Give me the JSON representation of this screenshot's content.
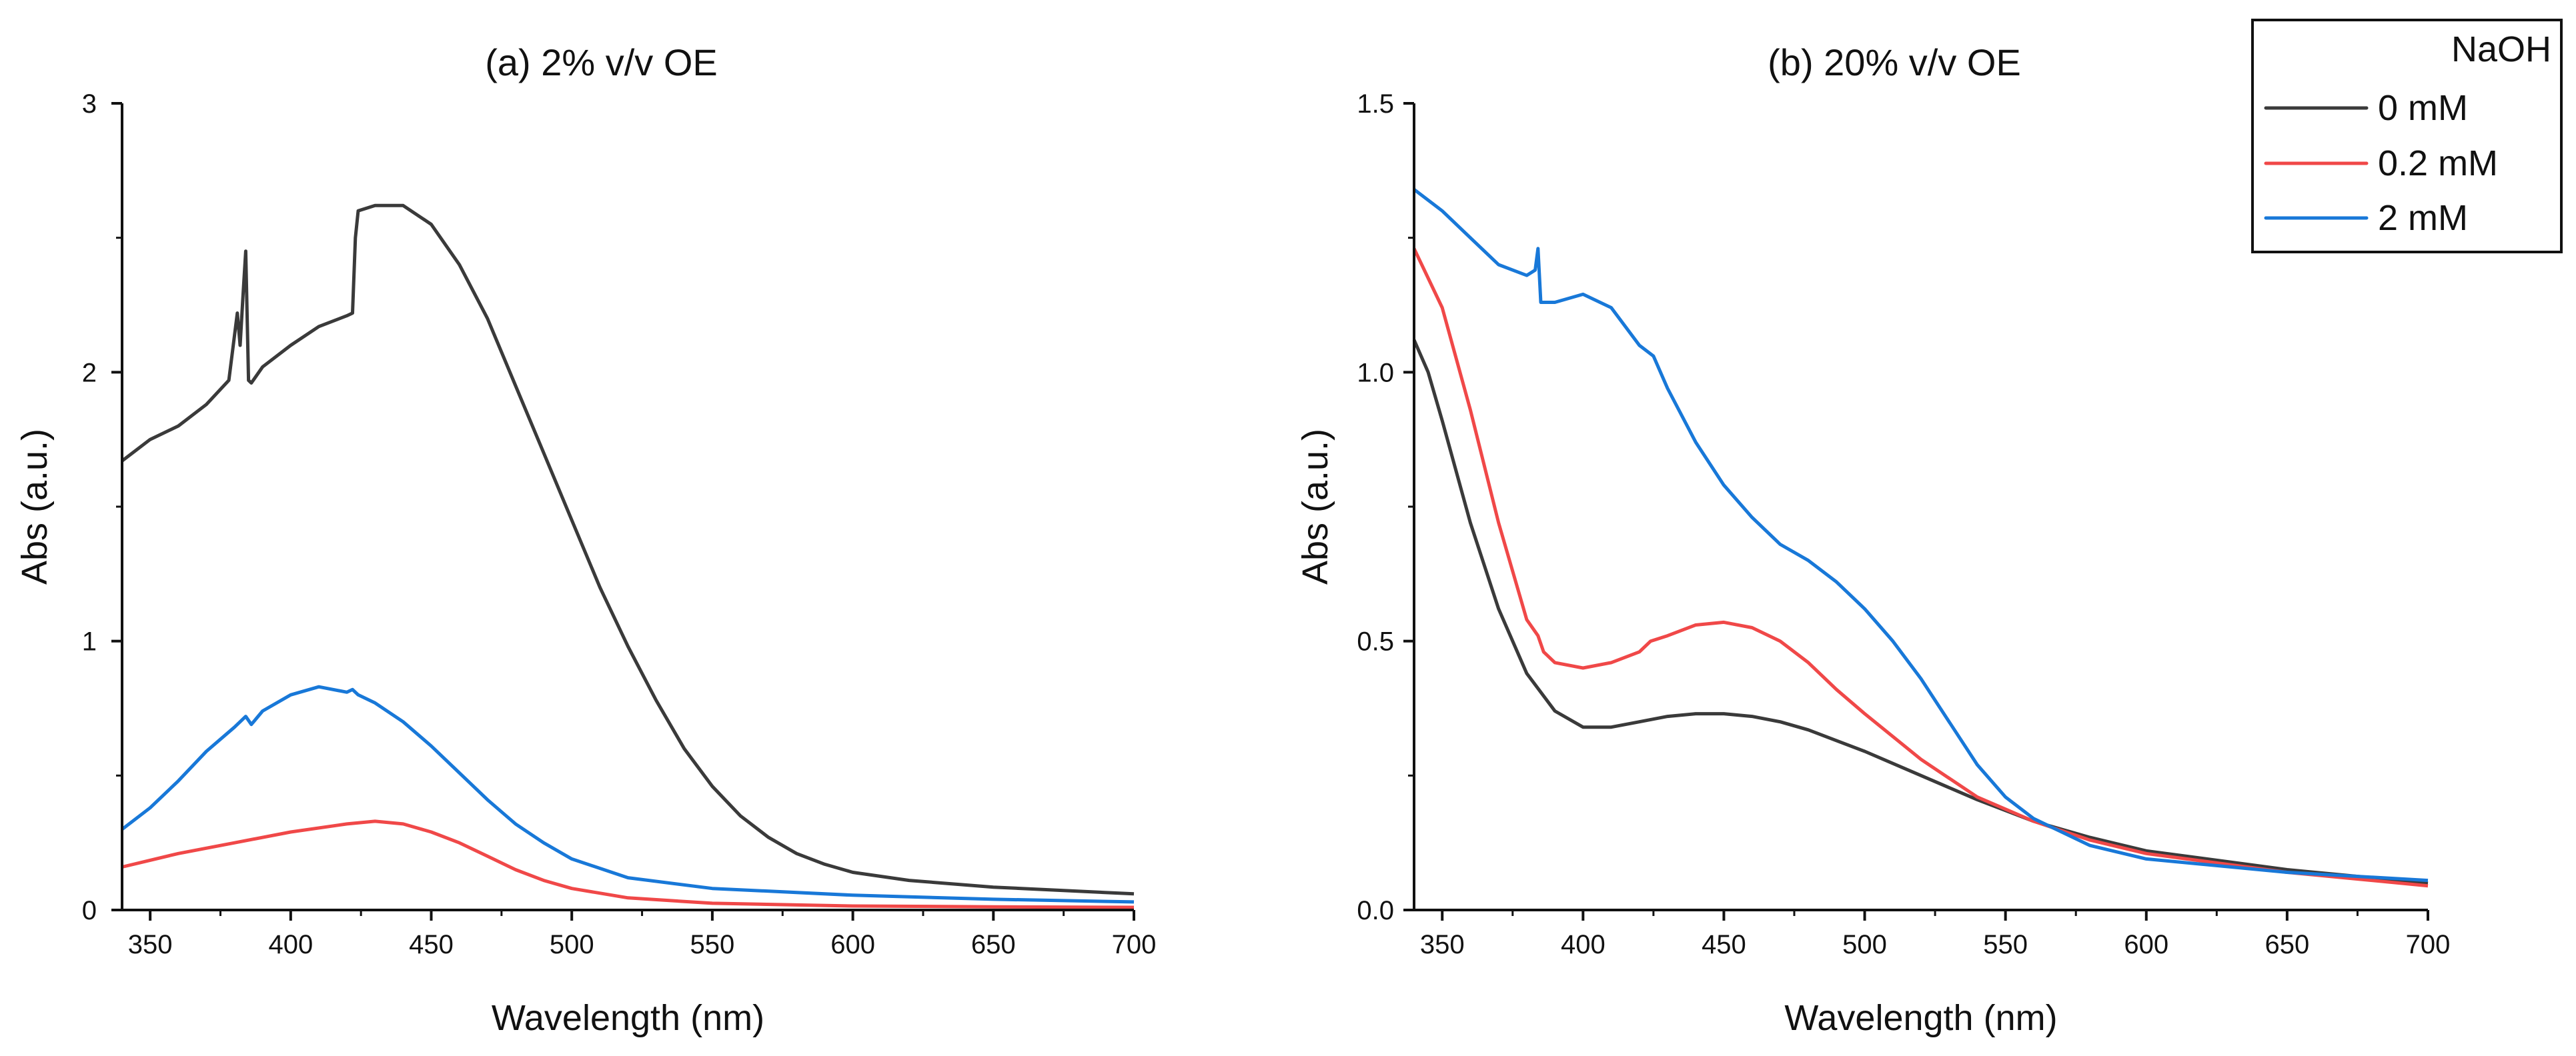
{
  "chart_data": [
    {
      "type": "line",
      "title": "(a) 2% v/v OE",
      "xlabel": "Wavelength (nm)",
      "ylabel": "Abs (a.u.)",
      "xlim": [
        340,
        700
      ],
      "ylim": [
        0,
        3
      ],
      "xticks": [
        350,
        400,
        450,
        500,
        550,
        600,
        650,
        700
      ],
      "xtick_labels": [
        "350",
        "400",
        "450",
        "500",
        "550",
        "600",
        "650",
        "700"
      ],
      "yticks": [
        0,
        1,
        2,
        3
      ],
      "ytick_labels": [
        "0",
        "1",
        "2",
        "3"
      ],
      "series": [
        {
          "name": "0 mM",
          "color": "#3a3a3a",
          "x": [
            340,
            350,
            360,
            370,
            378,
            381,
            382,
            383,
            384,
            385,
            386,
            390,
            400,
            410,
            420,
            422,
            423,
            424,
            430,
            440,
            450,
            460,
            470,
            480,
            490,
            500,
            510,
            520,
            530,
            540,
            550,
            560,
            570,
            580,
            590,
            600,
            620,
            650,
            700
          ],
          "y": [
            1.67,
            1.75,
            1.8,
            1.88,
            1.97,
            2.22,
            2.1,
            2.28,
            2.45,
            1.97,
            1.96,
            2.02,
            2.1,
            2.17,
            2.21,
            2.22,
            2.5,
            2.6,
            2.62,
            2.62,
            2.55,
            2.4,
            2.2,
            1.95,
            1.7,
            1.45,
            1.2,
            0.98,
            0.78,
            0.6,
            0.46,
            0.35,
            0.27,
            0.21,
            0.17,
            0.14,
            0.11,
            0.085,
            0.06
          ]
        },
        {
          "name": "0.2 mM",
          "color": "#f04848",
          "x": [
            340,
            360,
            380,
            400,
            420,
            430,
            440,
            450,
            460,
            470,
            480,
            490,
            500,
            520,
            550,
            600,
            650,
            700
          ],
          "y": [
            0.16,
            0.21,
            0.25,
            0.29,
            0.32,
            0.33,
            0.32,
            0.29,
            0.25,
            0.2,
            0.15,
            0.11,
            0.08,
            0.045,
            0.025,
            0.015,
            0.012,
            0.01
          ]
        },
        {
          "name": "2 mM",
          "color": "#1878d8",
          "x": [
            340,
            350,
            360,
            370,
            380,
            384,
            386,
            390,
            400,
            410,
            420,
            422,
            424,
            430,
            440,
            450,
            460,
            470,
            480,
            490,
            500,
            520,
            550,
            600,
            650,
            700
          ],
          "y": [
            0.3,
            0.38,
            0.48,
            0.59,
            0.68,
            0.72,
            0.69,
            0.74,
            0.8,
            0.83,
            0.81,
            0.82,
            0.8,
            0.77,
            0.7,
            0.61,
            0.51,
            0.41,
            0.32,
            0.25,
            0.19,
            0.12,
            0.08,
            0.055,
            0.04,
            0.03
          ]
        }
      ]
    },
    {
      "type": "line",
      "title": "(b) 20% v/v OE",
      "xlabel": "Wavelength (nm)",
      "ylabel": "Abs (a.u.)",
      "xlim": [
        340,
        700
      ],
      "ylim": [
        0,
        1.5
      ],
      "xticks": [
        350,
        400,
        450,
        500,
        550,
        600,
        650,
        700
      ],
      "xtick_labels": [
        "350",
        "400",
        "450",
        "500",
        "550",
        "600",
        "650",
        "700"
      ],
      "yticks": [
        0,
        0.5,
        1.0,
        1.5
      ],
      "ytick_labels": [
        "0.0",
        "0.5",
        "1.0",
        "1.5"
      ],
      "series": [
        {
          "name": "0 mM",
          "color": "#3a3a3a",
          "x": [
            340,
            345,
            350,
            360,
            370,
            380,
            390,
            400,
            410,
            420,
            430,
            440,
            450,
            460,
            470,
            480,
            490,
            500,
            520,
            540,
            560,
            580,
            600,
            650,
            700
          ],
          "y": [
            1.06,
            1.0,
            0.91,
            0.72,
            0.56,
            0.44,
            0.37,
            0.34,
            0.34,
            0.35,
            0.36,
            0.365,
            0.365,
            0.36,
            0.35,
            0.335,
            0.315,
            0.295,
            0.25,
            0.205,
            0.165,
            0.135,
            0.11,
            0.075,
            0.05
          ]
        },
        {
          "name": "0.2 mM",
          "color": "#f04848",
          "x": [
            340,
            350,
            360,
            370,
            380,
            384,
            386,
            390,
            400,
            410,
            420,
            424,
            430,
            440,
            450,
            460,
            470,
            480,
            490,
            500,
            520,
            540,
            560,
            580,
            600,
            650,
            700
          ],
          "y": [
            1.23,
            1.12,
            0.93,
            0.72,
            0.54,
            0.51,
            0.48,
            0.46,
            0.45,
            0.46,
            0.48,
            0.5,
            0.51,
            0.53,
            0.535,
            0.525,
            0.5,
            0.46,
            0.41,
            0.365,
            0.28,
            0.21,
            0.165,
            0.13,
            0.105,
            0.07,
            0.045
          ]
        },
        {
          "name": "2 mM",
          "color": "#1878d8",
          "x": [
            340,
            350,
            360,
            370,
            380,
            383,
            384,
            385,
            390,
            400,
            410,
            420,
            425,
            430,
            440,
            450,
            460,
            470,
            480,
            490,
            500,
            510,
            520,
            530,
            540,
            550,
            560,
            580,
            600,
            650,
            700
          ],
          "y": [
            1.34,
            1.3,
            1.25,
            1.2,
            1.18,
            1.19,
            1.23,
            1.13,
            1.13,
            1.145,
            1.12,
            1.05,
            1.03,
            0.97,
            0.87,
            0.79,
            0.73,
            0.68,
            0.65,
            0.61,
            0.56,
            0.5,
            0.43,
            0.35,
            0.27,
            0.21,
            0.17,
            0.12,
            0.095,
            0.07,
            0.055
          ]
        }
      ]
    }
  ],
  "legend": {
    "title": "NaOH",
    "placement": "top-right",
    "entries": [
      {
        "label": "0 mM",
        "color": "#3a3a3a"
      },
      {
        "label": "0.2 mM",
        "color": "#f04848"
      },
      {
        "label": "2 mM",
        "color": "#1878d8"
      }
    ]
  }
}
